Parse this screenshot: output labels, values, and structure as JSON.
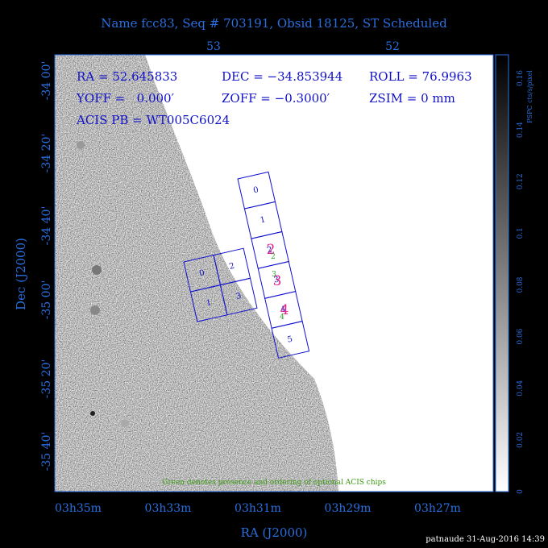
{
  "header": {
    "title": "Name fcc83, Seq # 703191, Obsid 18125, ST Scheduled"
  },
  "top_axis": {
    "ticks": [
      "53",
      "52"
    ]
  },
  "left_axis": {
    "label": "Dec (J2000)",
    "ticks": [
      "-34 00'",
      "-34 20'",
      "-34 40'",
      "-35 00'",
      "-35 20'",
      "-35 40'"
    ]
  },
  "bottom_axis": {
    "label": "RA (J2000)",
    "ticks": [
      "03h35m",
      "03h33m",
      "03h31m",
      "03h29m",
      "03h27m"
    ]
  },
  "info": {
    "ra": "RA = 52.645833",
    "dec": "DEC = −34.853944",
    "roll": "ROLL = 76.9963",
    "yoff": "YOFF =   0.000′",
    "zoff": "ZOFF = −0.3000′",
    "zsim": "ZSIM = 0 mm",
    "acis_pb": "ACIS PB = WT005C6024"
  },
  "acis_s": {
    "chips": [
      "0",
      "1",
      "2",
      "3",
      "4",
      "5"
    ]
  },
  "acis_i": {
    "chips": [
      "0",
      "2",
      "1",
      "3"
    ]
  },
  "optional_markers": {
    "magenta": [
      "2",
      "3",
      "4"
    ],
    "green": [
      "2",
      "3",
      "4"
    ]
  },
  "note": "Green denotes presence and ordering of optional ACIS chips",
  "colorbar": {
    "label": "PSPC cts/s/pixel",
    "ticks": [
      "0",
      "0.02",
      "0.04",
      "0.06",
      "0.08",
      "0.1",
      "0.12",
      "0.14",
      "0.16"
    ]
  },
  "footer": "patnaude 31-Aug-2016 14:39"
}
